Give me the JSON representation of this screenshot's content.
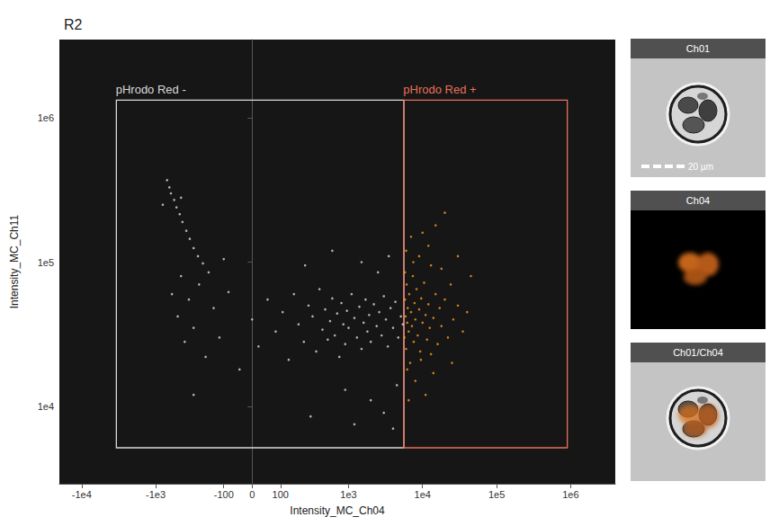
{
  "chart_data": {
    "type": "scatter",
    "title": "R2",
    "x_label": "Intensity_MC_Ch04",
    "y_label": "Intensity_MC_Ch11",
    "log": "y",
    "grid": false,
    "xlim": [
      -20000,
      4000000
    ],
    "xticks": [
      {
        "value": -10000,
        "label": "-1e4"
      },
      {
        "value": -1000,
        "label": "-1e3"
      },
      -100,
      0,
      100,
      {
        "value": 1000,
        "label": "1e3"
      },
      {
        "value": 10000,
        "label": "1e4"
      },
      {
        "value": 100000,
        "label": "1e5"
      },
      {
        "value": 1000000,
        "label": "1e6"
      }
    ],
    "ylim": [
      2900,
      3500000
    ],
    "yticks": [
      {
        "value": 10000,
        "label": "1e4"
      },
      {
        "value": 100000,
        "label": "1e5"
      },
      {
        "value": 1000000,
        "label": "1e6"
      }
    ],
    "series": [
      {
        "name": "pHrodo Red -",
        "color": "#dcdcdc",
        "gate": {
          "x": [
            -3400,
            5600
          ],
          "y": [
            5150,
            1330000
          ],
          "color": "#d9d9d9"
        },
        "values": [
          [
            -700,
            370000
          ],
          [
            -650,
            330000
          ],
          [
            -620,
            300000
          ],
          [
            -560,
            270000
          ],
          [
            -520,
            240000
          ],
          [
            -470,
            215000
          ],
          [
            -430,
            190000
          ],
          [
            -380,
            165000
          ],
          [
            -340,
            145000
          ],
          [
            -300,
            125000
          ],
          [
            -260,
            110000
          ],
          [
            -220,
            98000
          ],
          [
            -180,
            85000
          ],
          [
            -800,
            250000
          ],
          [
            -450,
            280000
          ],
          [
            -600,
            60000
          ],
          [
            -500,
            42000
          ],
          [
            -450,
            80000
          ],
          [
            -400,
            28000
          ],
          [
            -350,
            55000
          ],
          [
            -300,
            35000
          ],
          [
            -250,
            70000
          ],
          [
            -200,
            22000
          ],
          [
            -150,
            48000
          ],
          [
            -120,
            30000
          ],
          [
            -80,
            62000
          ],
          [
            -40,
            18000
          ],
          [
            0,
            40000
          ],
          [
            20,
            26000
          ],
          [
            50,
            55000
          ],
          [
            80,
            33000
          ],
          [
            110,
            45000
          ],
          [
            140,
            21000
          ],
          [
            170,
            60000
          ],
          [
            200,
            37000
          ],
          [
            240,
            28000
          ],
          [
            280,
            50000
          ],
          [
            320,
            42000
          ],
          [
            360,
            24000
          ],
          [
            400,
            65000
          ],
          [
            440,
            34000
          ],
          [
            480,
            47000
          ],
          [
            520,
            29000
          ],
          [
            560,
            39000
          ],
          [
            600,
            56000
          ],
          [
            650,
            31000
          ],
          [
            700,
            44000
          ],
          [
            750,
            22000
          ],
          [
            800,
            52000
          ],
          [
            850,
            37000
          ],
          [
            900,
            27000
          ],
          [
            950,
            46000
          ],
          [
            1000,
            35000
          ],
          [
            1100,
            60000
          ],
          [
            1200,
            41000
          ],
          [
            1300,
            30000
          ],
          [
            1400,
            49000
          ],
          [
            1500,
            25000
          ],
          [
            1600,
            38000
          ],
          [
            1700,
            55000
          ],
          [
            1800,
            33000
          ],
          [
            1900,
            43000
          ],
          [
            2000,
            28000
          ],
          [
            2200,
            51000
          ],
          [
            2400,
            36000
          ],
          [
            2600,
            45000
          ],
          [
            2800,
            31000
          ],
          [
            3000,
            58000
          ],
          [
            3200,
            40000
          ],
          [
            3400,
            26000
          ],
          [
            3700,
            48000
          ],
          [
            4000,
            35000
          ],
          [
            4300,
            53000
          ],
          [
            4700,
            30000
          ],
          [
            5100,
            42000
          ],
          [
            5400,
            37000
          ],
          [
            600,
            120000
          ],
          [
            1500,
            100000
          ],
          [
            2500,
            85000
          ],
          [
            3500,
            110000
          ],
          [
            900,
            13000
          ],
          [
            2000,
            11000
          ],
          [
            3000,
            9000
          ],
          [
            4500,
            14000
          ],
          [
            -300,
            12000
          ],
          [
            300,
            8500
          ],
          [
            1200,
            7500
          ],
          [
            4000,
            7000
          ],
          [
            250,
            95000
          ],
          [
            -100,
            105000
          ]
        ]
      },
      {
        "name": "pHrodo Red +",
        "color": "#ff9a1c",
        "gate": {
          "x": [
            5600,
            900000
          ],
          "y": [
            5150,
            1330000
          ],
          "color": "#e8705a"
        },
        "values": [
          [
            5700,
            30000
          ],
          [
            5800,
            55000
          ],
          [
            5900,
            42000
          ],
          [
            6000,
            25000
          ],
          [
            6100,
            70000
          ],
          [
            6200,
            38000
          ],
          [
            6300,
            48000
          ],
          [
            6500,
            33000
          ],
          [
            6600,
            60000
          ],
          [
            6800,
            20000
          ],
          [
            7000,
            45000
          ],
          [
            7200,
            36000
          ],
          [
            7400,
            80000
          ],
          [
            7600,
            28000
          ],
          [
            7800,
            52000
          ],
          [
            8000,
            40000
          ],
          [
            8300,
            65000
          ],
          [
            8600,
            31000
          ],
          [
            9000,
            47000
          ],
          [
            9300,
            24000
          ],
          [
            9600,
            56000
          ],
          [
            10000,
            38000
          ],
          [
            10500,
            72000
          ],
          [
            11000,
            43000
          ],
          [
            11500,
            29000
          ],
          [
            12000,
            51000
          ],
          [
            12500,
            35000
          ],
          [
            13000,
            95000
          ],
          [
            14000,
            41000
          ],
          [
            15000,
            60000
          ],
          [
            16000,
            27000
          ],
          [
            17000,
            48000
          ],
          [
            18000,
            36000
          ],
          [
            20000,
            55000
          ],
          [
            22000,
            30000
          ],
          [
            24000,
            70000
          ],
          [
            26000,
            40000
          ],
          [
            30000,
            50000
          ],
          [
            35000,
            33000
          ],
          [
            40000,
            45000
          ],
          [
            6000,
            120000
          ],
          [
            7000,
            150000
          ],
          [
            9000,
            110000
          ],
          [
            12000,
            130000
          ],
          [
            15000,
            180000
          ],
          [
            20000,
            220000
          ],
          [
            8000,
            15000
          ],
          [
            11000,
            12000
          ],
          [
            14000,
            17000
          ],
          [
            6500,
            11000
          ],
          [
            25000,
            20000
          ],
          [
            18000,
            90000
          ],
          [
            5800,
            85000
          ],
          [
            7500,
            100000
          ],
          [
            10000,
            160000
          ],
          [
            6200,
            18000
          ],
          [
            9500,
            21000
          ],
          [
            13000,
            23000
          ],
          [
            30000,
            110000
          ],
          [
            45000,
            80000
          ]
        ]
      }
    ]
  },
  "panels": [
    {
      "title": "Ch01",
      "scale_bar": "20 µm"
    },
    {
      "title": "Ch04"
    },
    {
      "title": "Ch01/Ch04"
    }
  ]
}
